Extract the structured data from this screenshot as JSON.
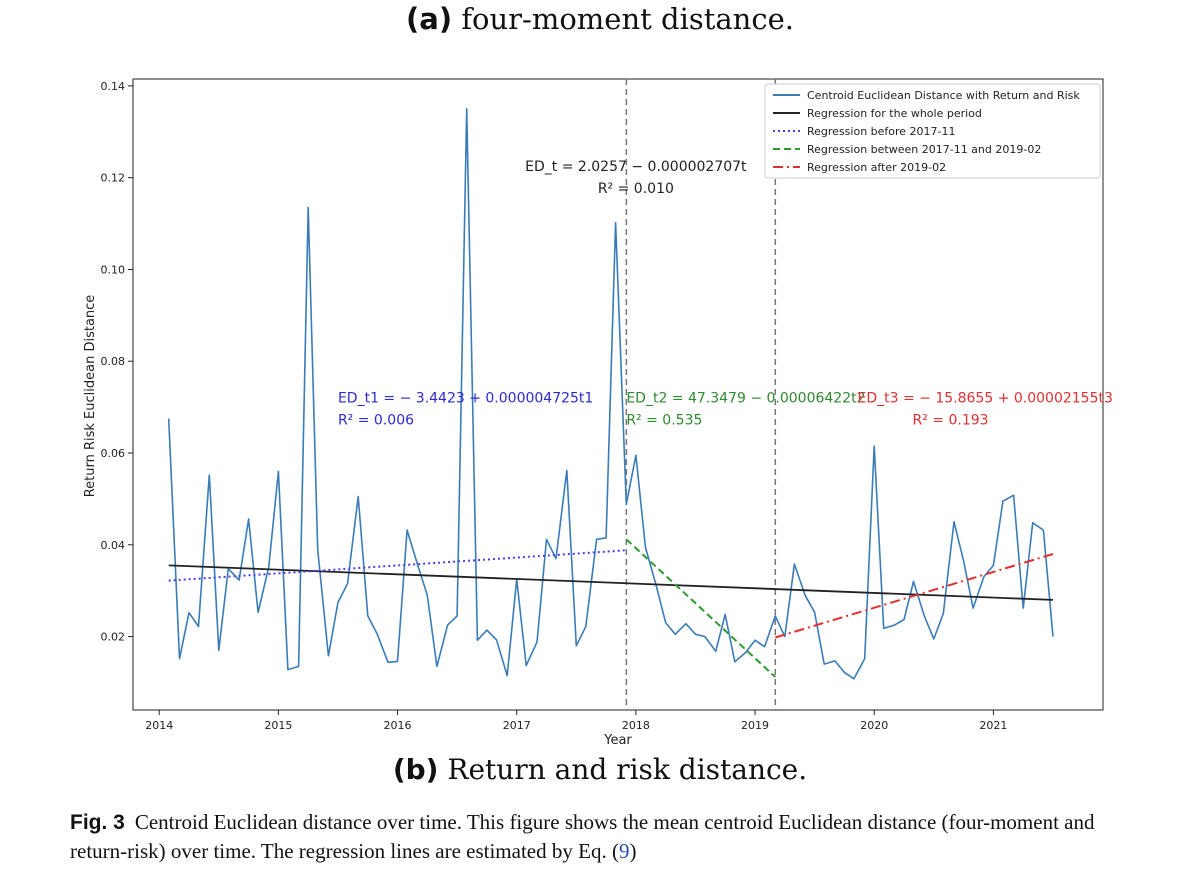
{
  "captions": {
    "a_label": "(a)",
    "a_text": "four-moment distance.",
    "b_label": "(b)",
    "b_text": "Return and risk distance.",
    "fig_label": "Fig. 3",
    "fig_text": "Centroid Euclidean distance over time. This figure shows the mean centroid Euclidean distance (four-moment and return-risk) over time. The regression lines are estimated by Eq. (",
    "fig_ref": "9",
    "fig_end": ")"
  },
  "chart_data": {
    "type": "line",
    "xlabel": "Year",
    "ylabel": "Return Risk Euclidean Distance",
    "xlim": [
      2013.78,
      2021.92
    ],
    "ylim": [
      0.004,
      0.1415
    ],
    "x_ticks": [
      2014,
      2015,
      2016,
      2017,
      2018,
      2019,
      2020,
      2021
    ],
    "y_ticks": [
      0.02,
      0.04,
      0.06,
      0.08,
      0.1,
      0.12,
      0.14
    ],
    "y_tick_labels": [
      "0.02",
      "0.04",
      "0.06",
      "0.08",
      "0.10",
      "0.12",
      "0.14"
    ],
    "vlines": [
      2017.92,
      2019.17
    ],
    "series": [
      {
        "name": "Centroid Euclidean Distance with Return and Risk",
        "color": "#3a7cb8",
        "style": "solid",
        "points": [
          [
            2014.08,
            0.0675
          ],
          [
            2014.17,
            0.0152
          ],
          [
            2014.25,
            0.0252
          ],
          [
            2014.33,
            0.0222
          ],
          [
            2014.42,
            0.0552
          ],
          [
            2014.5,
            0.017
          ],
          [
            2014.58,
            0.0348
          ],
          [
            2014.67,
            0.0323
          ],
          [
            2014.75,
            0.0456
          ],
          [
            2014.83,
            0.0253
          ],
          [
            2014.92,
            0.0352
          ],
          [
            2015.0,
            0.056
          ],
          [
            2015.08,
            0.0128
          ],
          [
            2015.17,
            0.0135
          ],
          [
            2015.25,
            0.1135
          ],
          [
            2015.33,
            0.039
          ],
          [
            2015.42,
            0.0158
          ],
          [
            2015.5,
            0.0275
          ],
          [
            2015.58,
            0.0315
          ],
          [
            2015.67,
            0.0505
          ],
          [
            2015.75,
            0.0245
          ],
          [
            2015.83,
            0.0205
          ],
          [
            2015.92,
            0.0144
          ],
          [
            2016.0,
            0.0146
          ],
          [
            2016.08,
            0.0432
          ],
          [
            2016.17,
            0.0355
          ],
          [
            2016.25,
            0.029
          ],
          [
            2016.33,
            0.0135
          ],
          [
            2016.42,
            0.0225
          ],
          [
            2016.5,
            0.0245
          ],
          [
            2016.58,
            0.135
          ],
          [
            2016.67,
            0.0192
          ],
          [
            2016.75,
            0.0214
          ],
          [
            2016.83,
            0.0193
          ],
          [
            2016.92,
            0.0115
          ],
          [
            2017.0,
            0.0325
          ],
          [
            2017.08,
            0.0137
          ],
          [
            2017.17,
            0.0188
          ],
          [
            2017.25,
            0.0412
          ],
          [
            2017.33,
            0.037
          ],
          [
            2017.42,
            0.0562
          ],
          [
            2017.5,
            0.018
          ],
          [
            2017.58,
            0.0222
          ],
          [
            2017.67,
            0.0412
          ],
          [
            2017.75,
            0.0415
          ],
          [
            2017.83,
            0.1102
          ],
          [
            2017.92,
            0.0488
          ],
          [
            2018.0,
            0.0595
          ],
          [
            2018.08,
            0.0395
          ],
          [
            2018.17,
            0.0312
          ],
          [
            2018.25,
            0.023
          ],
          [
            2018.33,
            0.0205
          ],
          [
            2018.42,
            0.0228
          ],
          [
            2018.5,
            0.0205
          ],
          [
            2018.58,
            0.02
          ],
          [
            2018.67,
            0.0168
          ],
          [
            2018.75,
            0.0248
          ],
          [
            2018.83,
            0.0145
          ],
          [
            2018.92,
            0.0165
          ],
          [
            2019.0,
            0.0192
          ],
          [
            2019.08,
            0.0178
          ],
          [
            2019.17,
            0.0245
          ],
          [
            2019.25,
            0.02
          ],
          [
            2019.33,
            0.0358
          ],
          [
            2019.42,
            0.029
          ],
          [
            2019.5,
            0.0253
          ],
          [
            2019.58,
            0.014
          ],
          [
            2019.67,
            0.0147
          ],
          [
            2019.75,
            0.0122
          ],
          [
            2019.83,
            0.0108
          ],
          [
            2019.92,
            0.0152
          ],
          [
            2020.0,
            0.0615
          ],
          [
            2020.08,
            0.0218
          ],
          [
            2020.17,
            0.0225
          ],
          [
            2020.25,
            0.0237
          ],
          [
            2020.33,
            0.032
          ],
          [
            2020.42,
            0.0245
          ],
          [
            2020.5,
            0.0195
          ],
          [
            2020.58,
            0.025
          ],
          [
            2020.67,
            0.045
          ],
          [
            2020.75,
            0.0365
          ],
          [
            2020.83,
            0.0262
          ],
          [
            2020.92,
            0.033
          ],
          [
            2021.0,
            0.0355
          ],
          [
            2021.08,
            0.0495
          ],
          [
            2021.17,
            0.0508
          ],
          [
            2021.25,
            0.0262
          ],
          [
            2021.33,
            0.0448
          ],
          [
            2021.42,
            0.0432
          ],
          [
            2021.5,
            0.02
          ]
        ]
      },
      {
        "name": "Regression for the whole period",
        "color": "#222222",
        "style": "solid",
        "points": [
          [
            2014.08,
            0.0355
          ],
          [
            2021.5,
            0.028
          ]
        ]
      },
      {
        "name": "Regression before 2017-11",
        "color": "#4a3ff0",
        "style": "dotted",
        "points": [
          [
            2014.08,
            0.0322
          ],
          [
            2017.92,
            0.0388
          ]
        ]
      },
      {
        "name": "Regression between 2017-11 and 2019-02",
        "color": "#2e9a2e",
        "style": "dashed",
        "points": [
          [
            2017.92,
            0.0412
          ],
          [
            2019.17,
            0.0112
          ]
        ]
      },
      {
        "name": "Regression after 2019-02",
        "color": "#e03030",
        "style": "dashdot",
        "points": [
          [
            2019.17,
            0.0198
          ],
          [
            2021.5,
            0.038
          ]
        ]
      }
    ],
    "annotations": [
      {
        "id": "whole",
        "color": "#222222",
        "line1": "ED_t = 2.0257 − 0.000002707t",
        "line2": "R² = 0.010",
        "x": 2018.0,
        "y": 0.1215
      },
      {
        "id": "before",
        "color": "#2b2bd0",
        "line1": "ED_t1 = − 3.4423 + 0.000004725t1",
        "line2": "R² = 0.006",
        "x": 2015.5,
        "y": 0.071
      },
      {
        "id": "between",
        "color": "#2e8a2e",
        "line1": "ED_t2 = 47.3479 − 0.00006422t2",
        "line2": "R² = 0.535",
        "x": 2017.92,
        "y": 0.071
      },
      {
        "id": "after",
        "color": "#e03030",
        "line1": "ED_t3 = − 15.8655 + 0.00002155t3",
        "line2": "R² = 0.193",
        "x": 2019.86,
        "y": 0.071
      }
    ]
  }
}
